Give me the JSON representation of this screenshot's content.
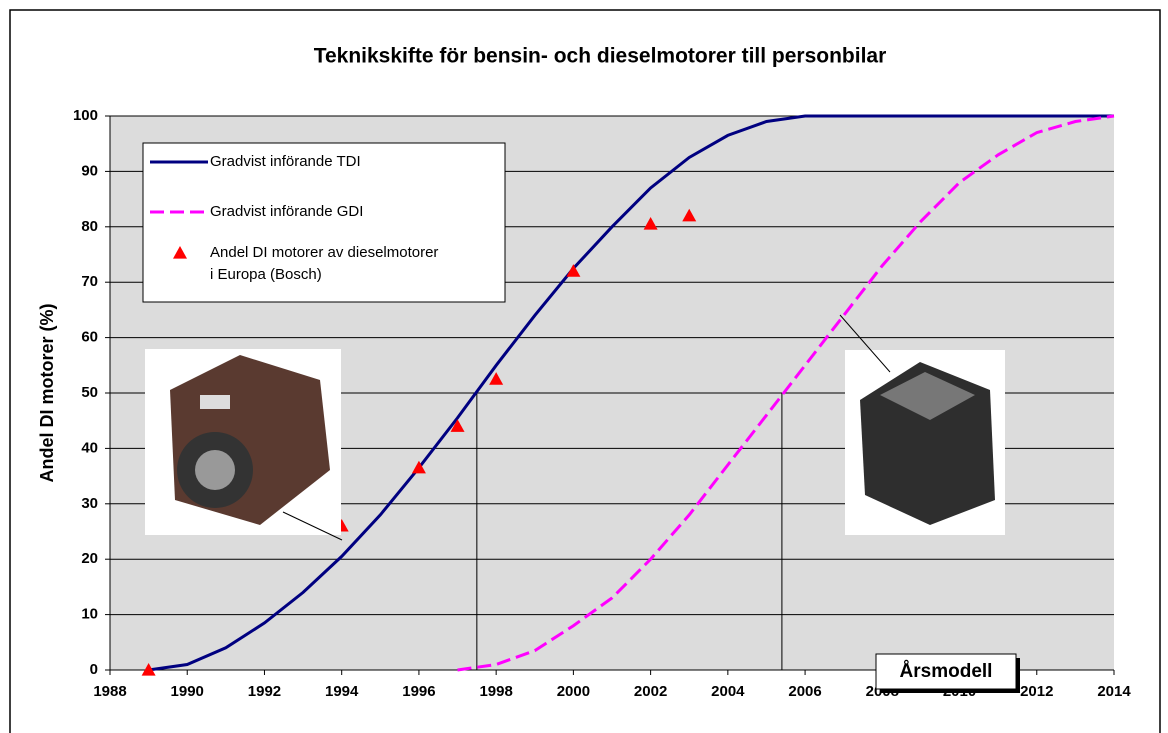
{
  "chart_data": {
    "type": "line",
    "title": "Teknikskifte för bensin- och dieselmotorer till personbilar",
    "y_label": "Andel DI motorer (%)",
    "annotation": "Årsmodell",
    "xlim": [
      1988,
      2014
    ],
    "ylim": [
      0,
      100
    ],
    "xticks": [
      1988,
      1990,
      1992,
      1994,
      1996,
      1998,
      2000,
      2002,
      2004,
      2006,
      2008,
      2010,
      2012,
      2014
    ],
    "yticks": [
      0,
      10,
      20,
      30,
      40,
      50,
      60,
      70,
      80,
      90,
      100
    ],
    "grid": true,
    "legend": "upper left",
    "series": [
      {
        "name": "Gradvist införande TDI",
        "color": "#000080",
        "style": "solid",
        "x": [
          1989,
          1990,
          1991,
          1992,
          1993,
          1994,
          1995,
          1996,
          1997,
          1998,
          1999,
          2000,
          2001,
          2002,
          2003,
          2004,
          2005,
          2006,
          2007,
          2008,
          2009,
          2010,
          2011,
          2012,
          2013,
          2014
        ],
        "values": [
          0,
          1,
          4,
          8.5,
          14,
          20.5,
          28,
          36.5,
          45.5,
          55,
          64,
          72.5,
          80,
          87,
          92.5,
          96.5,
          99,
          100,
          100,
          100,
          100,
          100,
          100,
          100,
          100,
          100
        ]
      },
      {
        "name": "Gradvist införande GDI",
        "color": "#ff00ff",
        "style": "dashed",
        "x": [
          1997,
          1998,
          1999,
          2000,
          2001,
          2002,
          2003,
          2004,
          2005,
          2006,
          2007,
          2008,
          2009,
          2010,
          2011,
          2012,
          2013,
          2014
        ],
        "values": [
          0,
          1,
          3.5,
          8,
          13,
          20,
          28,
          37,
          46,
          55,
          64,
          73,
          81,
          88,
          93,
          97,
          99,
          100
        ]
      },
      {
        "name": "Andel DI motorer av dieselmotorer i Europa (Bosch)",
        "color": "#ff0000",
        "marker": "triangle",
        "x": [
          1989,
          1994,
          1996,
          1997,
          1998,
          2000,
          2002,
          2003
        ],
        "values": [
          0,
          26,
          36.5,
          44,
          52.5,
          72,
          80.5,
          82
        ]
      }
    ],
    "drop_lines": [
      {
        "x": 1997.5,
        "y": 50
      },
      {
        "x": 2005.4,
        "y": 50
      }
    ]
  }
}
